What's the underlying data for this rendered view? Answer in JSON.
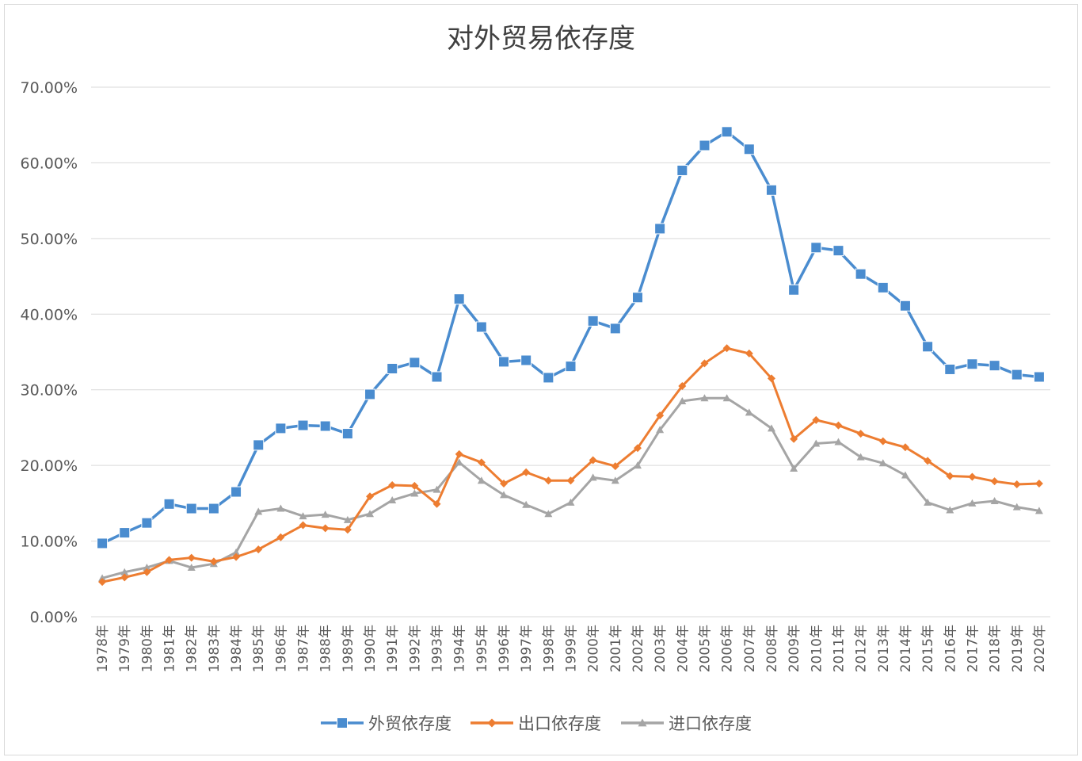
{
  "chart_data": {
    "type": "line",
    "title": "对外贸易依存度",
    "xlabel": "",
    "ylabel": "",
    "ylim": [
      0,
      0.7
    ],
    "y_ticks": [
      0,
      0.1,
      0.2,
      0.3,
      0.4,
      0.5,
      0.6,
      0.7
    ],
    "y_tick_labels": [
      "0.00%",
      "10.00%",
      "20.00%",
      "30.00%",
      "40.00%",
      "50.00%",
      "60.00%",
      "70.00%"
    ],
    "grid": true,
    "legend_position": "bottom",
    "categories": [
      "1978年",
      "1979年",
      "1980年",
      "1981年",
      "1982年",
      "1983年",
      "1984年",
      "1985年",
      "1986年",
      "1987年",
      "1988年",
      "1989年",
      "1990年",
      "1991年",
      "1992年",
      "1993年",
      "1994年",
      "1995年",
      "1996年",
      "1997年",
      "1998年",
      "1999年",
      "2000年",
      "2001年",
      "2002年",
      "2003年",
      "2004年",
      "2005年",
      "2006年",
      "2007年",
      "2008年",
      "2009年",
      "2010年",
      "2011年",
      "2012年",
      "2013年",
      "2014年",
      "2015年",
      "2016年",
      "2017年",
      "2018年",
      "2019年",
      "2020年"
    ],
    "series": [
      {
        "name": "外贸依存度",
        "color": "#4a8ccf",
        "marker": "square",
        "values": [
          0.097,
          0.111,
          0.124,
          0.149,
          0.143,
          0.143,
          0.165,
          0.227,
          0.249,
          0.253,
          0.252,
          0.242,
          0.294,
          0.328,
          0.336,
          0.317,
          0.42,
          0.383,
          0.337,
          0.339,
          0.316,
          0.331,
          0.391,
          0.381,
          0.422,
          0.513,
          0.59,
          0.623,
          0.641,
          0.618,
          0.564,
          0.432,
          0.488,
          0.484,
          0.453,
          0.435,
          0.411,
          0.357,
          0.327,
          0.334,
          0.332,
          0.32,
          0.317
        ]
      },
      {
        "name": "出口依存度",
        "color": "#ed7d31",
        "marker": "diamond",
        "values": [
          0.046,
          0.052,
          0.059,
          0.075,
          0.078,
          0.073,
          0.079,
          0.089,
          0.105,
          0.121,
          0.117,
          0.115,
          0.159,
          0.174,
          0.173,
          0.149,
          0.215,
          0.204,
          0.176,
          0.191,
          0.18,
          0.18,
          0.207,
          0.199,
          0.223,
          0.266,
          0.305,
          0.335,
          0.355,
          0.348,
          0.315,
          0.235,
          0.26,
          0.253,
          0.242,
          0.232,
          0.224,
          0.206,
          0.186,
          0.185,
          0.179,
          0.175,
          0.176
        ]
      },
      {
        "name": "进口依存度",
        "color": "#a5a5a5",
        "marker": "triangle",
        "values": [
          0.051,
          0.059,
          0.065,
          0.074,
          0.065,
          0.07,
          0.085,
          0.139,
          0.143,
          0.133,
          0.135,
          0.128,
          0.136,
          0.154,
          0.163,
          0.168,
          0.204,
          0.18,
          0.161,
          0.148,
          0.136,
          0.151,
          0.184,
          0.18,
          0.2,
          0.247,
          0.285,
          0.289,
          0.289,
          0.27,
          0.249,
          0.196,
          0.229,
          0.231,
          0.211,
          0.203,
          0.187,
          0.151,
          0.141,
          0.15,
          0.153,
          0.145,
          0.14
        ]
      }
    ]
  }
}
